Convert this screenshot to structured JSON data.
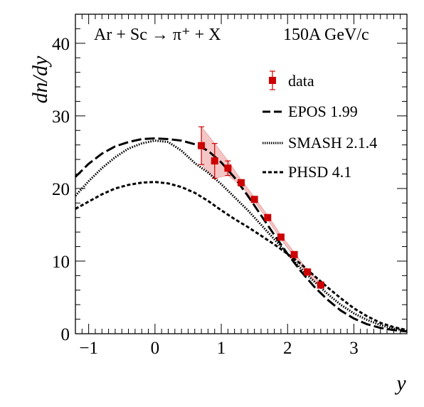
{
  "chart_data": {
    "type": "line",
    "title": "",
    "xlabel": "y",
    "ylabel": "dn/dy",
    "xlim": [
      -1.2,
      3.8
    ],
    "ylim": [
      0,
      44
    ],
    "xticks": [
      -1,
      0,
      1,
      2,
      3
    ],
    "yticks": [
      0,
      10,
      20,
      30,
      40
    ],
    "grid": false,
    "legend_position": "top-right",
    "annotations": {
      "reaction": "Ar + Sc → π⁺ + X",
      "energy": "150A GeV/c"
    },
    "legend": [
      {
        "label": "data",
        "style": "marker"
      },
      {
        "label": "EPOS 1.99",
        "style": "long-dash"
      },
      {
        "label": "SMASH 2.1.4",
        "style": "dotted"
      },
      {
        "label": "PHSD 4.1",
        "style": "short-dash"
      }
    ],
    "data": {
      "name": "data",
      "color": "#cc0000",
      "band_color": "#f5c6c6",
      "x": [
        0.7,
        0.9,
        1.1,
        1.3,
        1.5,
        1.7,
        1.9,
        2.1,
        2.3,
        2.5
      ],
      "y": [
        25.9,
        23.8,
        22.8,
        20.8,
        18.5,
        16.0,
        13.3,
        10.9,
        8.5,
        6.7
      ],
      "err": [
        2.6,
        2.4,
        1.0,
        0.4,
        0.3,
        0.3,
        0.3,
        0.3,
        0.3,
        0.3
      ]
    },
    "series": [
      {
        "name": "EPOS 1.99",
        "style": "long-dash",
        "x": [
          -1.2,
          -1.0,
          -0.8,
          -0.6,
          -0.4,
          -0.2,
          0.0,
          0.2,
          0.4,
          0.6,
          0.8,
          1.0,
          1.2,
          1.4,
          1.6,
          1.8,
          2.0,
          2.2,
          2.4,
          2.6,
          2.8,
          3.0,
          3.2,
          3.4,
          3.6,
          3.8
        ],
        "y": [
          21.6,
          23.4,
          24.8,
          25.8,
          26.4,
          26.8,
          26.9,
          26.8,
          26.6,
          26.1,
          25.2,
          23.6,
          21.5,
          19.0,
          16.3,
          13.6,
          11.0,
          8.6,
          6.5,
          4.7,
          3.2,
          2.1,
          1.3,
          0.8,
          0.5,
          0.3
        ]
      },
      {
        "name": "SMASH 2.1.4",
        "style": "dotted",
        "x": [
          -1.2,
          -1.0,
          -0.8,
          -0.6,
          -0.4,
          -0.2,
          0.0,
          0.2,
          0.4,
          0.6,
          0.8,
          1.0,
          1.2,
          1.4,
          1.6,
          1.8,
          2.0,
          2.2,
          2.4,
          2.6,
          2.8,
          3.0,
          3.2,
          3.4,
          3.6,
          3.8
        ],
        "y": [
          19.0,
          21.0,
          22.8,
          24.3,
          25.5,
          26.2,
          26.6,
          26.4,
          25.2,
          23.5,
          22.2,
          20.6,
          18.8,
          17.0,
          15.0,
          13.0,
          11.0,
          9.0,
          7.2,
          5.5,
          4.0,
          2.8,
          1.9,
          1.2,
          0.7,
          0.4
        ]
      },
      {
        "name": "PHSD 4.1",
        "style": "short-dash",
        "x": [
          -1.2,
          -1.0,
          -0.8,
          -0.6,
          -0.4,
          -0.2,
          0.0,
          0.2,
          0.4,
          0.6,
          0.8,
          1.0,
          1.2,
          1.4,
          1.6,
          1.8,
          2.0,
          2.2,
          2.4,
          2.6,
          2.8,
          3.0,
          3.2,
          3.4,
          3.6,
          3.8
        ],
        "y": [
          17.2,
          18.2,
          19.2,
          20.0,
          20.5,
          20.8,
          20.9,
          20.7,
          20.2,
          19.4,
          18.3,
          17.0,
          15.8,
          14.7,
          13.5,
          12.3,
          11.0,
          9.6,
          8.0,
          6.4,
          4.9,
          3.5,
          2.4,
          1.5,
          0.9,
          0.5
        ]
      }
    ]
  }
}
